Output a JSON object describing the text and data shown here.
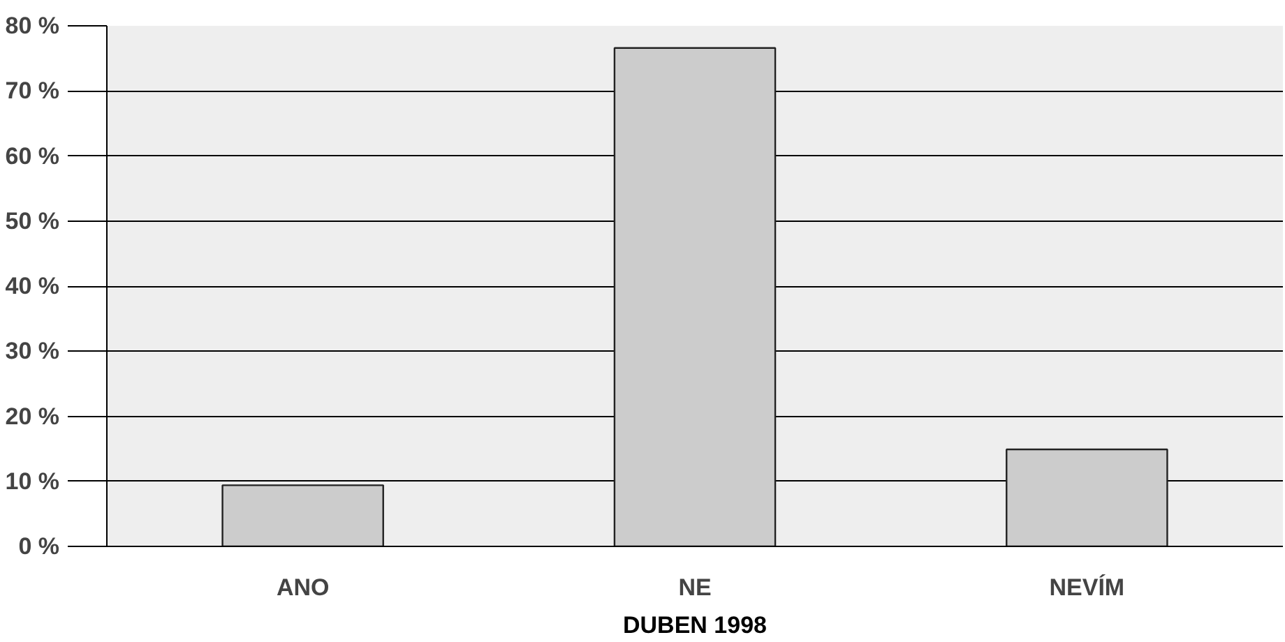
{
  "chart_data": {
    "type": "bar",
    "xlabel": "DUBEN 1998",
    "categories": [
      "ANO",
      "NE",
      "NEVÍM"
    ],
    "values": [
      9.4,
      76.6,
      14.9
    ],
    "color": "#cccccc",
    "ylim": [
      0,
      80
    ],
    "yticks": [
      {
        "value": 0,
        "label": "0 %"
      },
      {
        "value": 10,
        "label": "10 %"
      },
      {
        "value": 20,
        "label": "20 %"
      },
      {
        "value": 30,
        "label": "30 %"
      },
      {
        "value": 40,
        "label": "40 %"
      },
      {
        "value": 50,
        "label": "50 %"
      },
      {
        "value": 60,
        "label": "60 %"
      },
      {
        "value": 70,
        "label": "70 %"
      },
      {
        "value": 80,
        "label": "80 %"
      }
    ],
    "grid": "y"
  }
}
